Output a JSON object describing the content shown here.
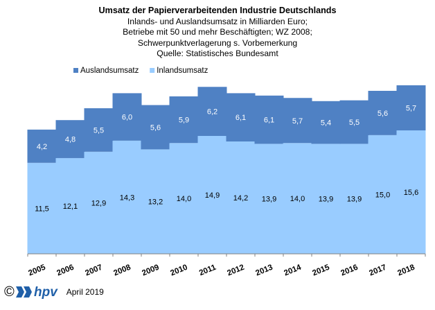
{
  "chart_data": {
    "type": "bar",
    "stacked": true,
    "title": "Umsatz der Papierverarbeitenden Industrie Deutschlands",
    "subtitle_lines": [
      "Inlands- und Auslandsumsatz in Milliarden Euro;",
      "Betriebe mit 50 und mehr Beschäftigten;  WZ 2008;",
      "Schwerpunktverlagerung   s. Vorbemerkung",
      "Quelle:  Statistisches Bundesamt"
    ],
    "categories": [
      "2005",
      "2006",
      "2007",
      "2008",
      "2009",
      "2010",
      "2011",
      "2012",
      "2013",
      "2014",
      "2015",
      "2016",
      "2017",
      "2018"
    ],
    "series": [
      {
        "name": "Inlandsumsatz",
        "color": "#99ccff",
        "values": [
          11.5,
          12.1,
          12.9,
          14.3,
          13.2,
          14.0,
          14.9,
          14.2,
          13.9,
          14.0,
          13.9,
          13.9,
          15.0,
          15.6
        ],
        "labels": [
          "11,5",
          "12,1",
          "12,9",
          "14,3",
          "13,2",
          "14,0",
          "14,9",
          "14,2",
          "13,9",
          "14,0",
          "13,9",
          "13,9",
          "15,0",
          "15,6"
        ]
      },
      {
        "name": "Auslandsumsatz",
        "color": "#4f81c4",
        "values": [
          4.2,
          4.8,
          5.5,
          6.0,
          5.6,
          5.9,
          6.2,
          6.1,
          6.1,
          5.7,
          5.4,
          5.5,
          5.6,
          5.7
        ],
        "labels": [
          "4,2",
          "4,8",
          "5,5",
          "6,0",
          "5,6",
          "5,9",
          "6,2",
          "6,1",
          "6,1",
          "5,7",
          "5,4",
          "5,5",
          "5,6",
          "5,7"
        ]
      }
    ],
    "legend_order": [
      "Auslandsumsatz",
      "Inlandsumsatz"
    ],
    "legend_position": "top-left",
    "ylim": [
      0,
      22
    ],
    "grid": false,
    "y_axis_visible": false
  },
  "footer": {
    "copyright": "©",
    "logo_text": "hpv",
    "date": "April 2019"
  }
}
